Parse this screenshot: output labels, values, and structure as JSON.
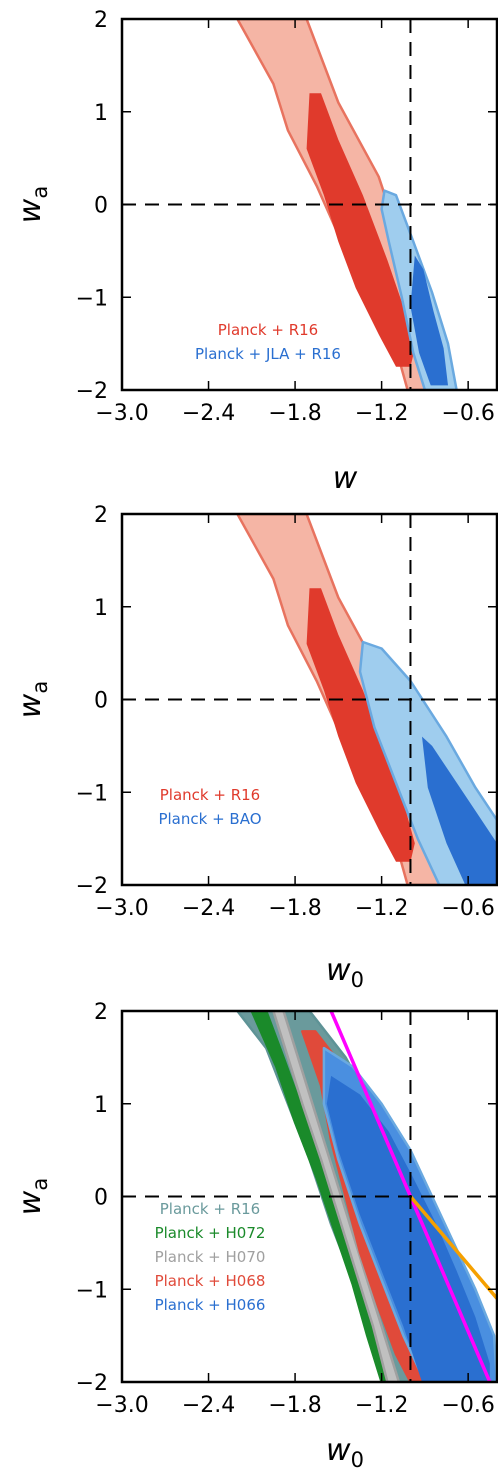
{
  "chart_data": [
    {
      "type": "contour",
      "xlabel": "w",
      "xlabel_sub": "",
      "ylabel": "w",
      "ylabel_sub": "a",
      "xlim": [
        -3.0,
        -0.4
      ],
      "ylim": [
        -2,
        2
      ],
      "xticks": [
        "−3.0",
        "−2.4",
        "−1.8",
        "−1.2",
        "−0.6"
      ],
      "yticks": [
        "−2",
        "−1",
        "0",
        "1",
        "2"
      ],
      "reference_lines": {
        "x": -1,
        "y": 0
      },
      "legend_position": "bottom-center",
      "series": [
        {
          "name": "Planck + R16",
          "color": "#e03a2c",
          "outer_color": "#f5b5a5",
          "edge_color": "#e8735f",
          "outer": [
            [
              -2.2,
              2.0
            ],
            [
              -1.95,
              1.3
            ],
            [
              -1.85,
              0.8
            ],
            [
              -1.65,
              0.2
            ],
            [
              -1.45,
              -0.5
            ],
            [
              -1.28,
              -1.0
            ],
            [
              -1.1,
              -1.55
            ],
            [
              -1.02,
              -2.0
            ],
            [
              -0.72,
              -2.0
            ],
            [
              -0.78,
              -1.6
            ],
            [
              -0.9,
              -1.05
            ],
            [
              -1.05,
              -0.5
            ],
            [
              -1.22,
              0.3
            ],
            [
              -1.5,
              1.1
            ],
            [
              -1.72,
              2.0
            ]
          ],
          "inner": [
            [
              -1.7,
              1.2
            ],
            [
              -1.72,
              0.6
            ],
            [
              -1.6,
              0.1
            ],
            [
              -1.5,
              -0.4
            ],
            [
              -1.38,
              -0.9
            ],
            [
              -1.22,
              -1.4
            ],
            [
              -1.1,
              -1.75
            ],
            [
              -1.0,
              -1.75
            ],
            [
              -0.97,
              -1.55
            ],
            [
              -1.05,
              -1.1
            ],
            [
              -1.16,
              -0.6
            ],
            [
              -1.33,
              0.1
            ],
            [
              -1.5,
              0.7
            ],
            [
              -1.62,
              1.2
            ]
          ]
        },
        {
          "name": "Planck + JLA + R16",
          "color": "#2a6fd0",
          "outer_color": "#9fcdee",
          "edge_color": "#6aa9e0",
          "outer": [
            [
              -1.18,
              0.15
            ],
            [
              -1.1,
              0.1
            ],
            [
              -0.98,
              -0.4
            ],
            [
              -0.85,
              -0.95
            ],
            [
              -0.74,
              -1.5
            ],
            [
              -0.68,
              -2.0
            ],
            [
              -0.9,
              -2.0
            ],
            [
              -0.98,
              -1.6
            ],
            [
              -1.06,
              -1.0
            ],
            [
              -1.15,
              -0.4
            ],
            [
              -1.2,
              -0.05
            ]
          ],
          "inner": [
            [
              -0.97,
              -0.55
            ],
            [
              -0.91,
              -0.7
            ],
            [
              -0.84,
              -1.15
            ],
            [
              -0.77,
              -1.55
            ],
            [
              -0.74,
              -1.95
            ],
            [
              -0.86,
              -1.95
            ],
            [
              -0.94,
              -1.6
            ],
            [
              -1.0,
              -1.1
            ]
          ]
        }
      ]
    },
    {
      "type": "contour",
      "xlabel": "w",
      "xlabel_sub": "0",
      "ylabel": "w",
      "ylabel_sub": "a",
      "xlim": [
        -3.0,
        -0.4
      ],
      "ylim": [
        -2,
        2
      ],
      "xticks": [
        "−3.0",
        "−2.4",
        "−1.8",
        "−1.2",
        "−0.6"
      ],
      "yticks": [
        "−2",
        "−1",
        "0",
        "1",
        "2"
      ],
      "reference_lines": {
        "x": -1,
        "y": 0
      },
      "legend_position": "bottom-left",
      "series": [
        {
          "name": "Planck + R16",
          "color": "#e03a2c",
          "outer_color": "#f5b5a5",
          "edge_color": "#e8735f",
          "outer": [
            [
              -2.2,
              2.0
            ],
            [
              -1.95,
              1.3
            ],
            [
              -1.85,
              0.8
            ],
            [
              -1.65,
              0.2
            ],
            [
              -1.45,
              -0.5
            ],
            [
              -1.28,
              -1.0
            ],
            [
              -1.1,
              -1.55
            ],
            [
              -1.02,
              -2.0
            ],
            [
              -0.72,
              -2.0
            ],
            [
              -0.78,
              -1.6
            ],
            [
              -0.9,
              -1.05
            ],
            [
              -1.05,
              -0.5
            ],
            [
              -1.22,
              0.3
            ],
            [
              -1.5,
              1.1
            ],
            [
              -1.72,
              2.0
            ]
          ],
          "inner": [
            [
              -1.7,
              1.2
            ],
            [
              -1.72,
              0.6
            ],
            [
              -1.6,
              0.1
            ],
            [
              -1.5,
              -0.4
            ],
            [
              -1.38,
              -0.9
            ],
            [
              -1.22,
              -1.4
            ],
            [
              -1.1,
              -1.75
            ],
            [
              -1.0,
              -1.75
            ],
            [
              -0.97,
              -1.55
            ],
            [
              -1.05,
              -1.1
            ],
            [
              -1.16,
              -0.6
            ],
            [
              -1.33,
              0.1
            ],
            [
              -1.5,
              0.7
            ],
            [
              -1.62,
              1.2
            ]
          ]
        },
        {
          "name": "Planck + BAO",
          "color": "#2a6fd0",
          "outer_color": "#9fcdee",
          "edge_color": "#6aa9e0",
          "outer": [
            [
              -1.33,
              0.62
            ],
            [
              -1.2,
              0.55
            ],
            [
              -1.0,
              0.2
            ],
            [
              -0.75,
              -0.4
            ],
            [
              -0.55,
              -0.95
            ],
            [
              -0.4,
              -1.3
            ],
            [
              -0.4,
              -2.0
            ],
            [
              -0.8,
              -2.0
            ],
            [
              -0.95,
              -1.5
            ],
            [
              -1.1,
              -0.9
            ],
            [
              -1.25,
              -0.3
            ],
            [
              -1.35,
              0.3
            ]
          ],
          "inner": [
            [
              -0.92,
              -0.4
            ],
            [
              -0.85,
              -0.5
            ],
            [
              -0.7,
              -0.85
            ],
            [
              -0.55,
              -1.2
            ],
            [
              -0.4,
              -1.55
            ],
            [
              -0.4,
              -2.0
            ],
            [
              -0.62,
              -2.0
            ],
            [
              -0.75,
              -1.55
            ],
            [
              -0.88,
              -0.95
            ]
          ]
        }
      ]
    },
    {
      "type": "contour",
      "xlabel": "w",
      "xlabel_sub": "0",
      "ylabel": "w",
      "ylabel_sub": "a",
      "xlim": [
        -3.0,
        -0.4
      ],
      "ylim": [
        -2,
        2
      ],
      "xticks": [
        "−3.0",
        "−2.4",
        "−1.8",
        "−1.2",
        "−0.6"
      ],
      "yticks": [
        "−2",
        "−1",
        "0",
        "1",
        "2"
      ],
      "reference_lines": {
        "x": -1,
        "y": 0
      },
      "legend_position": "bottom-left",
      "lines": [
        {
          "color": "#ff00ff",
          "points": [
            [
              -1.55,
              2.0
            ],
            [
              -1.0,
              0.0
            ],
            [
              -0.45,
              -2.0
            ]
          ]
        },
        {
          "color": "#f5a000",
          "points": [
            [
              -1.0,
              0.0
            ],
            [
              -0.4,
              -1.1
            ]
          ]
        }
      ],
      "series": [
        {
          "name": "Planck + R16",
          "color": "#6a9a9c",
          "outer_color": "#6a9a9c",
          "edge_color": "#5e9396",
          "outer": [
            [
              -2.2,
              2.0
            ],
            [
              -2.0,
              1.6
            ],
            [
              -1.85,
              1.0
            ],
            [
              -1.7,
              0.4
            ],
            [
              -1.55,
              -0.3
            ],
            [
              -1.4,
              -0.9
            ],
            [
              -1.28,
              -1.4
            ],
            [
              -1.12,
              -2.0
            ],
            [
              -0.55,
              -2.0
            ],
            [
              -0.62,
              -1.6
            ],
            [
              -0.75,
              -1.0
            ],
            [
              -0.9,
              -0.4
            ],
            [
              -1.0,
              0.2
            ],
            [
              -1.2,
              0.8
            ],
            [
              -1.45,
              1.5
            ],
            [
              -1.7,
              2.0
            ]
          ],
          "inner": []
        },
        {
          "name": "Planck + H072",
          "color": "#1a8a2a",
          "outer_color": "#1a8a2a",
          "edge_color": "#1a8a2a",
          "outer": [
            [
              -2.1,
              2.0
            ],
            [
              -1.93,
              1.4
            ],
            [
              -1.8,
              0.8
            ],
            [
              -1.65,
              0.2
            ],
            [
              -1.52,
              -0.4
            ],
            [
              -1.4,
              -0.95
            ],
            [
              -1.3,
              -1.5
            ],
            [
              -1.2,
              -2.0
            ],
            [
              -1.14,
              -2.0
            ],
            [
              -1.24,
              -1.5
            ],
            [
              -1.35,
              -0.9
            ],
            [
              -1.48,
              -0.3
            ],
            [
              -1.6,
              0.3
            ],
            [
              -1.74,
              0.9
            ],
            [
              -1.88,
              1.5
            ],
            [
              -2.0,
              2.0
            ]
          ],
          "inner": []
        },
        {
          "name": "Planck + H070",
          "color": "#a0a0a0",
          "outer_color": "#c0c0c0",
          "edge_color": "#a0a0a0",
          "outer": [
            [
              -1.95,
              2.0
            ],
            [
              -1.85,
              1.5
            ],
            [
              -1.75,
              1.0
            ],
            [
              -1.62,
              0.4
            ],
            [
              -1.5,
              -0.2
            ],
            [
              -1.38,
              -0.8
            ],
            [
              -1.26,
              -1.4
            ],
            [
              -1.16,
              -2.0
            ],
            [
              -1.08,
              -2.0
            ],
            [
              -1.2,
              -1.4
            ],
            [
              -1.32,
              -0.8
            ],
            [
              -1.44,
              -0.2
            ],
            [
              -1.56,
              0.4
            ],
            [
              -1.68,
              1.0
            ],
            [
              -1.8,
              1.6
            ],
            [
              -1.88,
              2.0
            ]
          ],
          "inner": []
        },
        {
          "name": "Planck + H068",
          "color": "#e04a3a",
          "outer_color": "#e04a3a",
          "edge_color": "#e04a3a",
          "outer": [
            [
              -1.75,
              1.78
            ],
            [
              -1.62,
              1.2
            ],
            [
              -1.55,
              0.6
            ],
            [
              -1.45,
              0.0
            ],
            [
              -1.35,
              -0.6
            ],
            [
              -1.22,
              -1.2
            ],
            [
              -1.1,
              -1.7
            ],
            [
              -1.0,
              -2.0
            ],
            [
              -0.72,
              -2.0
            ],
            [
              -0.82,
              -1.5
            ],
            [
              -0.95,
              -0.9
            ],
            [
              -1.08,
              -0.3
            ],
            [
              -1.2,
              0.3
            ],
            [
              -1.35,
              0.9
            ],
            [
              -1.52,
              1.5
            ],
            [
              -1.66,
              1.78
            ]
          ],
          "inner": []
        },
        {
          "name": "Planck + H066",
          "color": "#2a6fd0",
          "outer_color": "#4a8fe0",
          "edge_color": "#6aa9e0",
          "outer": [
            [
              -1.6,
              1.6
            ],
            [
              -1.4,
              1.4
            ],
            [
              -1.2,
              1.0
            ],
            [
              -1.0,
              0.5
            ],
            [
              -0.85,
              0.0
            ],
            [
              -0.7,
              -0.5
            ],
            [
              -0.55,
              -1.0
            ],
            [
              -0.42,
              -1.5
            ],
            [
              -0.4,
              -2.0
            ],
            [
              -0.9,
              -2.0
            ],
            [
              -1.05,
              -1.5
            ],
            [
              -1.2,
              -0.9
            ],
            [
              -1.35,
              -0.3
            ],
            [
              -1.5,
              0.4
            ],
            [
              -1.6,
              1.0
            ]
          ],
          "inner": [
            [
              -1.55,
              1.3
            ],
            [
              -1.35,
              1.1
            ],
            [
              -1.15,
              0.7
            ],
            [
              -0.98,
              0.2
            ],
            [
              -0.82,
              -0.3
            ],
            [
              -0.68,
              -0.8
            ],
            [
              -0.55,
              -1.3
            ],
            [
              -0.45,
              -1.8
            ],
            [
              -0.45,
              -2.0
            ],
            [
              -0.92,
              -2.0
            ],
            [
              -1.05,
              -1.4
            ],
            [
              -1.2,
              -0.8
            ],
            [
              -1.35,
              -0.2
            ],
            [
              -1.5,
              0.5
            ],
            [
              -1.58,
              1.0
            ]
          ]
        }
      ]
    }
  ]
}
